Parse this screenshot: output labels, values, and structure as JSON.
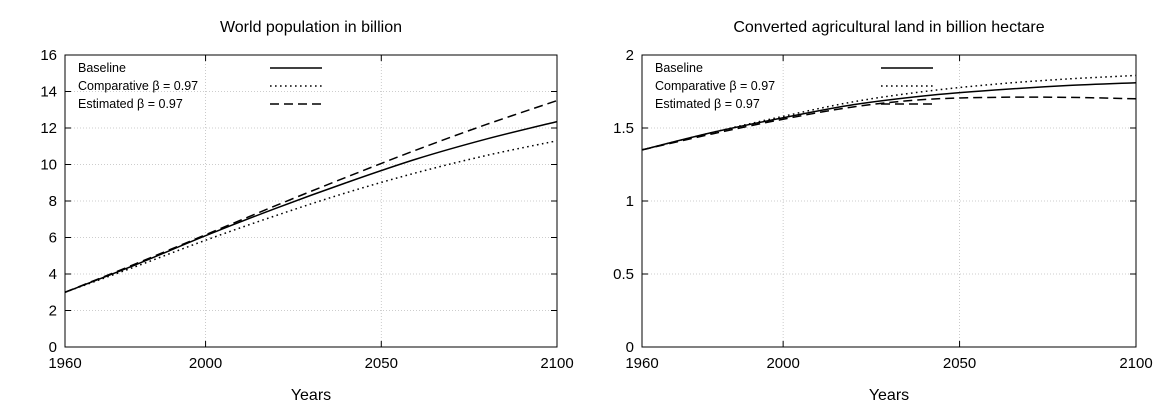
{
  "chart_data": [
    {
      "type": "line",
      "title": "World population in billion",
      "xlabel": "Years",
      "ylabel": "",
      "xlim": [
        1960,
        2100
      ],
      "ylim": [
        0,
        16
      ],
      "xticks": [
        1960,
        2000,
        2050,
        2100
      ],
      "yticks": [
        0,
        2,
        4,
        6,
        8,
        10,
        12,
        14,
        16
      ],
      "grid": true,
      "legend_position": "top-left",
      "x": [
        1960,
        1980,
        2000,
        2020,
        2040,
        2060,
        2080,
        2100
      ],
      "series": [
        {
          "name": "Baseline",
          "dash": "solid",
          "values": [
            3.0,
            4.5,
            6.1,
            7.6,
            9.0,
            10.3,
            11.4,
            12.35
          ]
        },
        {
          "name": "Comparative β = 0.97",
          "dash": "dotted",
          "values": [
            3.0,
            4.4,
            5.85,
            7.2,
            8.45,
            9.55,
            10.5,
            11.3
          ]
        },
        {
          "name": "Estimated β = 0.97",
          "dash": "dashed",
          "values": [
            3.0,
            4.55,
            6.15,
            7.75,
            9.3,
            10.8,
            12.2,
            13.5
          ]
        }
      ]
    },
    {
      "type": "line",
      "title": "Converted agricultural land in billion hectare",
      "xlabel": "Years",
      "ylabel": "",
      "xlim": [
        1960,
        2100
      ],
      "ylim": [
        0,
        2
      ],
      "xticks": [
        1960,
        2000,
        2050,
        2100
      ],
      "yticks": [
        0,
        0.5,
        1,
        1.5,
        2
      ],
      "grid": true,
      "legend_position": "top-left",
      "x": [
        1960,
        1980,
        2000,
        2020,
        2040,
        2060,
        2080,
        2100
      ],
      "series": [
        {
          "name": "Baseline",
          "dash": "solid",
          "values": [
            1.35,
            1.47,
            1.57,
            1.66,
            1.72,
            1.76,
            1.79,
            1.81
          ]
        },
        {
          "name": "Comparative β = 0.97",
          "dash": "dotted",
          "values": [
            1.35,
            1.47,
            1.58,
            1.68,
            1.75,
            1.8,
            1.835,
            1.86
          ]
        },
        {
          "name": "Estimated β = 0.97",
          "dash": "dashed",
          "values": [
            1.35,
            1.46,
            1.56,
            1.645,
            1.695,
            1.71,
            1.71,
            1.7
          ]
        }
      ]
    }
  ]
}
